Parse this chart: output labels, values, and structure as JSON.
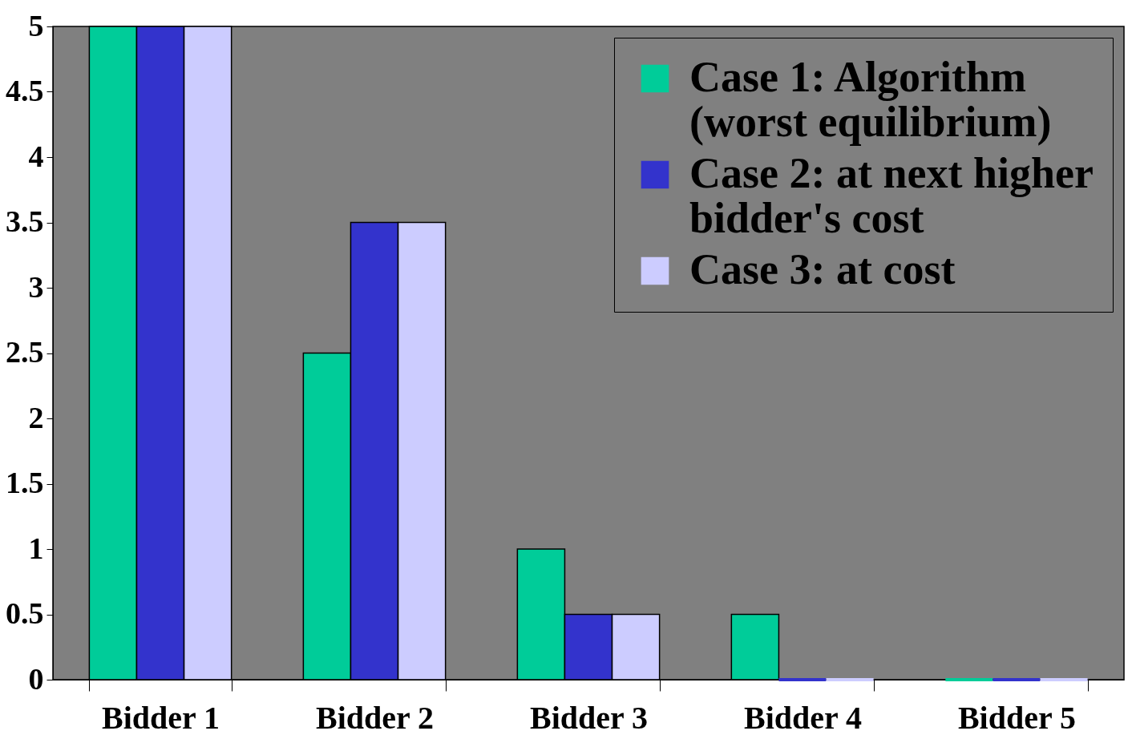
{
  "chart_data": {
    "type": "bar",
    "categories": [
      "Bidder 1",
      "Bidder 2",
      "Bidder 3",
      "Bidder 4",
      "Bidder 5"
    ],
    "series": [
      {
        "name": "Case 1: Algorithm (worst equilibrium)",
        "color": "#00cc99",
        "values": [
          5,
          2.5,
          1,
          0.5,
          0
        ]
      },
      {
        "name": "Case 2: at next higher bidder's cost",
        "color": "#3333cc",
        "values": [
          5,
          3.5,
          0.5,
          0,
          0
        ]
      },
      {
        "name": "Case 3: at cost",
        "color": "#ccccff",
        "values": [
          5,
          3.5,
          0.5,
          0,
          0
        ]
      }
    ],
    "ylim": [
      0,
      5
    ],
    "yticks": [
      0,
      0.5,
      1,
      1.5,
      2,
      2.5,
      3,
      3.5,
      4,
      4.5,
      5
    ],
    "grid": false,
    "legend": "top right"
  }
}
